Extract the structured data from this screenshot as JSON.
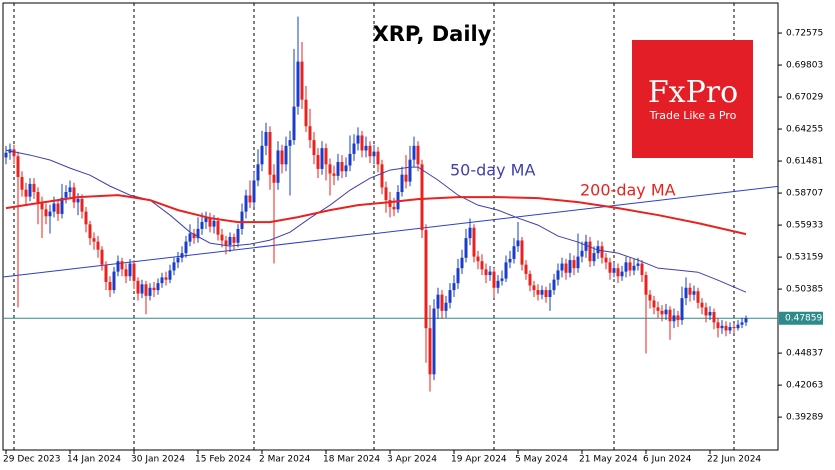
{
  "chart_data": {
    "type": "candlestick",
    "title": "XRP, Daily",
    "categories": [
      "29 Dec 2023",
      null,
      null,
      null,
      null,
      null,
      null,
      null,
      null,
      null,
      null,
      null,
      null,
      null,
      null,
      null,
      "14 Jan 2024",
      null,
      null,
      null,
      null,
      null,
      null,
      null,
      null,
      null,
      null,
      null,
      null,
      null,
      null,
      null,
      "30 Jan 2024",
      null,
      null,
      null,
      null,
      null,
      null,
      null,
      null,
      null,
      null,
      null,
      null,
      null,
      null,
      null,
      "15 Feb 2024",
      null,
      null,
      null,
      null,
      null,
      null,
      null,
      null,
      null,
      null,
      null,
      null,
      null,
      null,
      null,
      "2 Mar 2024",
      null,
      null,
      null,
      null,
      null,
      null,
      null,
      null,
      null,
      null,
      null,
      null,
      null,
      null,
      null,
      "18 Mar 2024",
      null,
      null,
      null,
      null,
      null,
      null,
      null,
      null,
      null,
      null,
      null,
      null,
      null,
      null,
      null,
      "3 Apr 2024",
      null,
      null,
      null,
      null,
      null,
      null,
      null,
      null,
      null,
      null,
      null,
      null,
      null,
      null,
      null,
      "19 Apr 2024",
      null,
      null,
      null,
      null,
      null,
      null,
      null,
      null,
      null,
      null,
      null,
      null,
      null,
      null,
      null,
      "5 May 2024",
      null,
      null,
      null,
      null,
      null,
      null,
      null,
      null,
      null,
      null,
      null,
      null,
      null,
      null,
      null,
      "21 May 2024",
      null,
      null,
      null,
      null,
      null,
      null,
      null,
      null,
      null,
      null,
      null,
      null,
      null,
      null,
      null,
      "6 Jun 2024",
      null,
      null,
      null,
      null,
      null,
      null,
      null,
      null,
      null,
      null,
      null,
      null,
      null,
      null,
      null,
      "22 Jun 2024",
      null,
      null,
      null,
      null,
      null,
      null,
      null,
      null,
      null
    ],
    "open": [
      0.618,
      0.622,
      0.625,
      0.619,
      0.601,
      0.59,
      0.584,
      0.595,
      0.588,
      0.579,
      0.573,
      0.567,
      0.571,
      0.578,
      0.569,
      0.583,
      0.588,
      0.592,
      0.579,
      0.582,
      0.571,
      0.56,
      0.548,
      0.545,
      0.538,
      0.525,
      0.51,
      0.503,
      0.519,
      0.528,
      0.521,
      0.515,
      0.526,
      0.511,
      0.5,
      0.508,
      0.498,
      0.505,
      0.503,
      0.509,
      0.514,
      0.512,
      0.52,
      0.527,
      0.531,
      0.535,
      0.545,
      0.552,
      0.548,
      0.556,
      0.562,
      0.566,
      0.558,
      0.563,
      0.551,
      0.546,
      0.542,
      0.549,
      0.544,
      0.556,
      0.571,
      0.585,
      0.579,
      0.598,
      0.612,
      0.628,
      0.64,
      0.603,
      0.596,
      0.624,
      0.612,
      0.628,
      0.633,
      0.662,
      0.701,
      0.668,
      0.645,
      0.633,
      0.62,
      0.608,
      0.626,
      0.612,
      0.604,
      0.602,
      0.614,
      0.606,
      0.611,
      0.621,
      0.63,
      0.637,
      0.624,
      0.628,
      0.619,
      0.623,
      0.612,
      0.592,
      0.581,
      0.575,
      0.573,
      0.588,
      0.603,
      0.597,
      0.616,
      0.628,
      0.612,
      0.555,
      0.47,
      0.43,
      0.487,
      0.499,
      0.485,
      0.492,
      0.503,
      0.509,
      0.522,
      0.531,
      0.548,
      0.557,
      0.532,
      0.528,
      0.521,
      0.516,
      0.519,
      0.505,
      0.511,
      0.513,
      0.527,
      0.53,
      0.541,
      0.546,
      0.525,
      0.517,
      0.507,
      0.503,
      0.499,
      0.503,
      0.497,
      0.503,
      0.512,
      0.52,
      0.526,
      0.518,
      0.529,
      0.522,
      0.532,
      0.537,
      0.545,
      0.528,
      0.535,
      0.541,
      0.531,
      0.527,
      0.518,
      0.522,
      0.515,
      0.519,
      0.527,
      0.52,
      0.524,
      0.526,
      0.516,
      0.499,
      0.494,
      0.488,
      0.485,
      0.482,
      0.486,
      0.476,
      0.481,
      0.477,
      0.496,
      0.505,
      0.499,
      0.502,
      0.492,
      0.488,
      0.481,
      0.484,
      0.475,
      0.47,
      0.472,
      0.468,
      0.471,
      0.47,
      0.473,
      0.475
    ],
    "high": [
      0.628,
      0.63,
      0.629,
      0.623,
      0.606,
      0.596,
      0.6,
      0.6,
      0.592,
      0.584,
      0.578,
      0.577,
      0.584,
      0.582,
      0.595,
      0.594,
      0.598,
      0.596,
      0.587,
      0.586,
      0.575,
      0.563,
      0.553,
      0.55,
      0.541,
      0.528,
      0.515,
      0.523,
      0.533,
      0.531,
      0.526,
      0.53,
      0.529,
      0.514,
      0.512,
      0.511,
      0.509,
      0.51,
      0.513,
      0.518,
      0.519,
      0.525,
      0.531,
      0.536,
      0.541,
      0.55,
      0.56,
      0.556,
      0.566,
      0.57,
      0.571,
      0.57,
      0.568,
      0.566,
      0.556,
      0.55,
      0.553,
      0.552,
      0.56,
      0.578,
      0.59,
      0.598,
      0.605,
      0.625,
      0.641,
      0.648,
      0.645,
      0.612,
      0.632,
      0.629,
      0.636,
      0.641,
      0.712,
      0.74,
      0.718,
      0.68,
      0.66,
      0.64,
      0.626,
      0.632,
      0.63,
      0.617,
      0.611,
      0.621,
      0.62,
      0.618,
      0.637,
      0.638,
      0.644,
      0.641,
      0.636,
      0.632,
      0.629,
      0.627,
      0.616,
      0.597,
      0.588,
      0.583,
      0.594,
      0.61,
      0.62,
      0.628,
      0.636,
      0.632,
      0.616,
      0.56,
      0.49,
      0.495,
      0.505,
      0.503,
      0.498,
      0.509,
      0.516,
      0.53,
      0.538,
      0.556,
      0.565,
      0.56,
      0.537,
      0.534,
      0.526,
      0.524,
      0.522,
      0.516,
      0.52,
      0.533,
      0.537,
      0.548,
      0.562,
      0.549,
      0.529,
      0.52,
      0.511,
      0.508,
      0.507,
      0.506,
      0.509,
      0.517,
      0.526,
      0.531,
      0.53,
      0.535,
      0.533,
      0.552,
      0.545,
      0.551,
      0.549,
      0.541,
      0.546,
      0.545,
      0.535,
      0.531,
      0.527,
      0.526,
      0.524,
      0.532,
      0.531,
      0.53,
      0.531,
      0.529,
      0.519,
      0.503,
      0.498,
      0.493,
      0.49,
      0.491,
      0.489,
      0.487,
      0.485,
      0.506,
      0.514,
      0.509,
      0.507,
      0.505,
      0.496,
      0.492,
      0.489,
      0.487,
      0.479,
      0.477,
      0.476,
      0.475,
      0.474,
      0.477,
      0.479,
      0.481
    ],
    "low": [
      0.612,
      0.616,
      0.612,
      0.488,
      0.584,
      0.576,
      0.58,
      0.582,
      0.56,
      0.548,
      0.56,
      0.552,
      0.566,
      0.563,
      0.565,
      0.578,
      0.582,
      0.574,
      0.568,
      0.565,
      0.553,
      0.542,
      0.538,
      0.531,
      0.52,
      0.503,
      0.497,
      0.5,
      0.515,
      0.515,
      0.509,
      0.511,
      0.504,
      0.494,
      0.496,
      0.482,
      0.494,
      0.497,
      0.499,
      0.505,
      0.507,
      0.509,
      0.516,
      0.522,
      0.527,
      0.531,
      0.541,
      0.543,
      0.544,
      0.551,
      0.556,
      0.553,
      0.552,
      0.546,
      0.54,
      0.534,
      0.536,
      0.538,
      0.54,
      0.551,
      0.565,
      0.574,
      0.575,
      0.593,
      0.606,
      0.62,
      0.59,
      0.526,
      0.59,
      0.604,
      0.606,
      0.585,
      0.629,
      0.655,
      0.66,
      0.64,
      0.626,
      0.612,
      0.6,
      0.603,
      0.598,
      0.585,
      0.594,
      0.598,
      0.6,
      0.601,
      0.606,
      0.615,
      0.624,
      0.618,
      0.618,
      0.613,
      0.612,
      0.605,
      0.586,
      0.57,
      0.566,
      0.567,
      0.57,
      0.584,
      0.591,
      0.593,
      0.61,
      0.606,
      0.548,
      0.44,
      0.415,
      0.425,
      0.478,
      0.478,
      0.479,
      0.487,
      0.497,
      0.504,
      0.517,
      0.527,
      0.542,
      0.527,
      0.521,
      0.516,
      0.509,
      0.511,
      0.496,
      0.5,
      0.507,
      0.51,
      0.522,
      0.526,
      0.536,
      0.52,
      0.512,
      0.502,
      0.497,
      0.494,
      0.495,
      0.492,
      0.485,
      0.499,
      0.507,
      0.514,
      0.512,
      0.514,
      0.516,
      0.518,
      0.527,
      0.531,
      0.523,
      0.524,
      0.53,
      0.526,
      0.521,
      0.512,
      0.514,
      0.509,
      0.511,
      0.514,
      0.515,
      0.516,
      0.52,
      0.51,
      0.448,
      0.487,
      0.482,
      0.479,
      0.476,
      0.477,
      0.46,
      0.47,
      0.471,
      0.473,
      0.49,
      0.493,
      0.494,
      0.487,
      0.482,
      0.475,
      0.477,
      0.469,
      0.462,
      0.465,
      0.463,
      0.465,
      0.466,
      0.468,
      0.47,
      0.472
    ],
    "close": [
      0.622,
      0.625,
      0.619,
      0.601,
      0.59,
      0.584,
      0.595,
      0.588,
      0.579,
      0.573,
      0.567,
      0.571,
      0.578,
      0.569,
      0.583,
      0.588,
      0.592,
      0.579,
      0.582,
      0.571,
      0.56,
      0.548,
      0.545,
      0.538,
      0.525,
      0.51,
      0.503,
      0.519,
      0.528,
      0.521,
      0.515,
      0.526,
      0.511,
      0.5,
      0.508,
      0.498,
      0.505,
      0.503,
      0.509,
      0.514,
      0.512,
      0.52,
      0.527,
      0.531,
      0.535,
      0.545,
      0.552,
      0.548,
      0.556,
      0.562,
      0.566,
      0.558,
      0.563,
      0.551,
      0.546,
      0.542,
      0.549,
      0.544,
      0.556,
      0.571,
      0.585,
      0.579,
      0.598,
      0.612,
      0.628,
      0.64,
      0.603,
      0.596,
      0.624,
      0.612,
      0.628,
      0.633,
      0.662,
      0.701,
      0.668,
      0.645,
      0.633,
      0.62,
      0.608,
      0.626,
      0.612,
      0.604,
      0.602,
      0.614,
      0.606,
      0.611,
      0.621,
      0.63,
      0.637,
      0.624,
      0.628,
      0.619,
      0.623,
      0.612,
      0.592,
      0.581,
      0.575,
      0.573,
      0.588,
      0.603,
      0.597,
      0.616,
      0.628,
      0.612,
      0.555,
      0.47,
      0.43,
      0.487,
      0.499,
      0.485,
      0.492,
      0.503,
      0.509,
      0.522,
      0.531,
      0.548,
      0.557,
      0.532,
      0.528,
      0.521,
      0.516,
      0.519,
      0.505,
      0.511,
      0.513,
      0.527,
      0.53,
      0.541,
      0.546,
      0.525,
      0.517,
      0.507,
      0.503,
      0.499,
      0.503,
      0.497,
      0.503,
      0.512,
      0.52,
      0.526,
      0.518,
      0.529,
      0.522,
      0.532,
      0.537,
      0.545,
      0.528,
      0.535,
      0.541,
      0.531,
      0.527,
      0.518,
      0.522,
      0.515,
      0.519,
      0.527,
      0.52,
      0.524,
      0.526,
      0.516,
      0.499,
      0.494,
      0.488,
      0.485,
      0.482,
      0.486,
      0.476,
      0.481,
      0.477,
      0.496,
      0.505,
      0.499,
      0.502,
      0.492,
      0.488,
      0.481,
      0.484,
      0.475,
      0.47,
      0.472,
      0.468,
      0.471,
      0.47,
      0.473,
      0.475,
      0.4786
    ],
    "up_color": "#1a3cc8",
    "down_color": "#e8231f",
    "series": [
      {
        "name": "50-day MA",
        "color": "#3f3faf",
        "x": [
          0,
          6,
          11,
          16,
          21,
          26,
          31,
          36,
          41,
          46,
          51,
          56,
          61,
          66,
          71,
          76,
          81,
          86,
          91,
          96,
          101,
          103,
          108,
          113,
          118,
          123,
          128,
          133,
          138,
          143,
          148,
          153,
          158,
          163,
          168,
          173,
          178,
          185
        ],
        "values": [
          0.6243,
          0.62,
          0.6157,
          0.6087,
          0.6026,
          0.5931,
          0.5853,
          0.581,
          0.568,
          0.5532,
          0.5437,
          0.5411,
          0.5428,
          0.5463,
          0.5532,
          0.5654,
          0.5766,
          0.5896,
          0.6,
          0.607,
          0.6096,
          0.6096,
          0.5983,
          0.5853,
          0.5766,
          0.5723,
          0.5654,
          0.5593,
          0.5498,
          0.5446,
          0.5376,
          0.535,
          0.529,
          0.522,
          0.5203,
          0.5185,
          0.5116,
          0.5012
        ]
      },
      {
        "name": "200-day MA",
        "color": "#e8231f",
        "x": [
          0,
          8,
          18,
          28,
          36,
          43,
          51,
          58,
          66,
          73,
          81,
          88,
          96,
          103,
          113,
          123,
          133,
          143,
          153,
          163,
          173,
          185
        ],
        "values": [
          0.574,
          0.5784,
          0.5836,
          0.5853,
          0.581,
          0.5723,
          0.5654,
          0.5619,
          0.5619,
          0.5662,
          0.5723,
          0.5766,
          0.5792,
          0.5818,
          0.5836,
          0.5836,
          0.5827,
          0.5792,
          0.574,
          0.568,
          0.561,
          0.5515
        ]
      }
    ],
    "trendline": {
      "x": [
        0,
        185
      ],
      "values": [
        0.5146,
        0.5896
      ],
      "color": "#2b3fd0"
    },
    "last_price": 0.47859,
    "last_price_color": "#2e8b8b",
    "ylim": [
      0.3644,
      0.7544
    ],
    "yticks": [
      0.72575,
      0.69803,
      0.67029,
      0.64255,
      0.61481,
      0.58707,
      0.55933,
      0.53159,
      0.50385,
      0.44837,
      0.42063,
      0.39289
    ]
  },
  "brand": {
    "name": "FxPro",
    "tagline": "Trade Like a Pro"
  }
}
